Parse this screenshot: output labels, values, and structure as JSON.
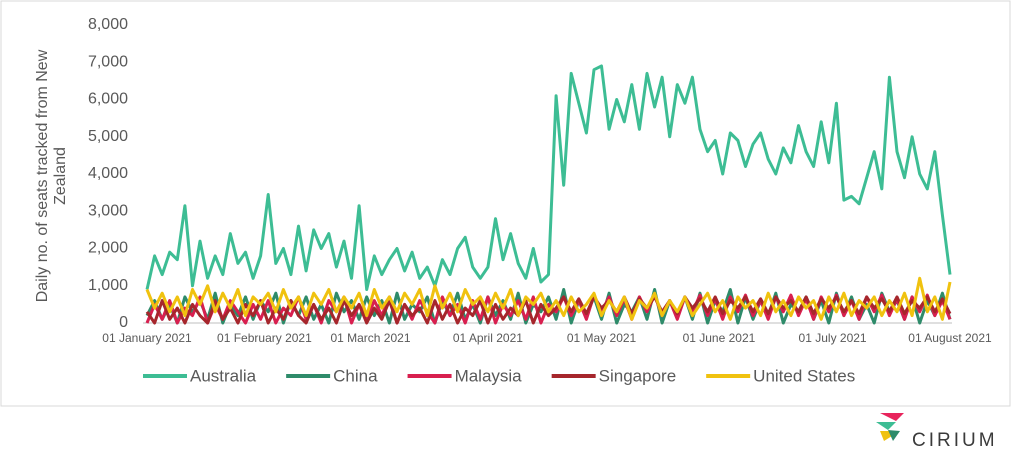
{
  "chart_data": {
    "type": "line",
    "y_label": "Daily no. of seats tracked from New Zealand",
    "x": [
      0,
      2,
      4,
      6,
      8,
      10,
      12,
      14,
      16,
      18,
      20,
      22,
      24,
      26,
      28,
      30,
      32,
      34,
      36,
      38,
      40,
      42,
      44,
      46,
      48,
      50,
      52,
      54,
      56,
      58,
      60,
      62,
      64,
      66,
      68,
      70,
      72,
      74,
      76,
      78,
      80,
      82,
      84,
      86,
      88,
      90,
      92,
      94,
      96,
      98,
      100,
      102,
      104,
      106,
      108,
      110,
      112,
      114,
      116,
      118,
      120,
      122,
      124,
      126,
      128,
      130,
      132,
      134,
      136,
      138,
      140,
      142,
      144,
      146,
      148,
      150,
      152,
      154,
      156,
      158,
      160,
      162,
      164,
      166,
      168,
      170,
      172,
      174,
      176,
      178,
      180,
      182,
      184,
      186,
      188,
      190,
      192,
      194,
      196,
      198,
      200,
      202,
      204,
      206,
      208,
      210,
      212
    ],
    "xlim": [
      0,
      212
    ],
    "xticks": [
      {
        "value": 0,
        "label": "01 January 2021"
      },
      {
        "value": 31,
        "label": "01 February 2021"
      },
      {
        "value": 59,
        "label": "01 March 2021"
      },
      {
        "value": 90,
        "label": "01 April 2021"
      },
      {
        "value": 120,
        "label": "01 May 2021"
      },
      {
        "value": 151,
        "label": "01 June 2021"
      },
      {
        "value": 181,
        "label": "01 July 2021"
      },
      {
        "value": 212,
        "label": "01 August 2021"
      }
    ],
    "ylim": [
      0,
      8000
    ],
    "yticks": [
      0,
      {
        "value": 1000,
        "label": "1,000"
      },
      {
        "value": 2000,
        "label": "2,000"
      },
      {
        "value": 3000,
        "label": "3,000"
      },
      {
        "value": 4000,
        "label": "4,000"
      },
      {
        "value": 5000,
        "label": "5,000"
      },
      {
        "value": 6000,
        "label": "6,000"
      },
      {
        "value": 7000,
        "label": "7,000"
      },
      {
        "value": 8000,
        "label": "8,000"
      }
    ],
    "series": [
      {
        "name": "Australia",
        "color": "#3dbd94",
        "values": [
          900,
          1800,
          1300,
          1900,
          1700,
          3150,
          1000,
          2200,
          1200,
          1800,
          1300,
          2400,
          1600,
          1900,
          1200,
          1800,
          3450,
          1600,
          2000,
          1300,
          2600,
          1400,
          2500,
          2000,
          2400,
          1500,
          2200,
          1200,
          3150,
          900,
          1800,
          1300,
          1700,
          2000,
          1400,
          1900,
          1200,
          1500,
          1000,
          1700,
          1300,
          2000,
          2300,
          1500,
          1200,
          1500,
          2800,
          1700,
          2400,
          1600,
          1200,
          2000,
          1100,
          1300,
          6100,
          3700,
          6700,
          5900,
          5100,
          6800,
          6900,
          5200,
          6000,
          5400,
          6400,
          5200,
          6700,
          5800,
          6600,
          5000,
          6400,
          5900,
          6600,
          5200,
          4600,
          4900,
          4000,
          5100,
          4900,
          4200,
          4800,
          5100,
          4400,
          4000,
          4700,
          4300,
          5300,
          4600,
          4200,
          5400,
          4300,
          5900,
          3300,
          3400,
          3200,
          3900,
          4600,
          3600,
          6600,
          4600,
          3900,
          5000,
          4000,
          3600,
          4600,
          2900,
          1300
        ]
      },
      {
        "name": "China",
        "color": "#2e8b6a",
        "values": [
          200,
          600,
          100,
          500,
          0,
          700,
          300,
          600,
          100,
          800,
          0,
          500,
          200,
          700,
          100,
          600,
          300,
          800,
          0,
          600,
          200,
          700,
          100,
          500,
          0,
          800,
          300,
          600,
          100,
          700,
          200,
          600,
          0,
          800,
          100,
          500,
          300,
          700,
          0,
          600,
          200,
          800,
          100,
          500,
          0,
          700,
          200,
          600,
          100,
          800,
          0,
          500,
          300,
          700,
          100,
          900,
          0,
          600,
          200,
          700,
          100,
          800,
          0,
          500,
          300,
          700,
          100,
          900,
          0,
          600,
          200,
          700,
          100,
          800,
          0,
          600,
          300,
          900,
          0,
          700,
          100,
          600,
          200,
          800,
          0,
          500,
          300,
          700,
          100,
          600,
          0,
          800,
          200,
          700,
          100,
          500,
          0,
          800,
          300,
          600,
          100,
          700,
          0,
          600,
          200,
          800,
          100
        ]
      },
      {
        "name": "Malaysia",
        "color": "#d81f4f",
        "values": [
          0,
          500,
          100,
          600,
          0,
          400,
          200,
          700,
          0,
          500,
          100,
          600,
          300,
          0,
          500,
          100,
          600,
          0,
          400,
          200,
          700,
          100,
          500,
          0,
          600,
          300,
          700,
          0,
          500,
          100,
          600,
          200,
          700,
          0,
          500,
          100,
          600,
          300,
          0,
          700,
          200,
          500,
          0,
          600,
          100,
          700,
          0,
          500,
          200,
          600,
          100,
          700,
          0,
          500,
          300,
          700,
          200,
          600,
          100,
          750,
          300,
          700,
          200,
          650,
          100,
          700,
          300,
          750,
          200,
          600,
          100,
          700,
          300,
          750,
          200,
          650,
          100,
          700,
          300,
          750,
          200,
          600,
          100,
          700,
          300,
          750,
          200,
          650,
          100,
          700,
          300,
          750,
          200,
          600,
          100,
          700,
          300,
          750,
          200,
          650,
          100,
          700,
          300,
          750,
          200,
          600,
          100
        ]
      },
      {
        "name": "Singapore",
        "color": "#a6262c",
        "values": [
          300,
          0,
          600,
          100,
          400,
          0,
          500,
          200,
          0,
          600,
          100,
          400,
          0,
          500,
          200,
          600,
          0,
          400,
          100,
          600,
          200,
          0,
          500,
          100,
          400,
          0,
          600,
          200,
          500,
          0,
          400,
          100,
          600,
          0,
          500,
          200,
          400,
          0,
          600,
          100,
          500,
          0,
          400,
          200,
          600,
          0,
          500,
          100,
          400,
          200,
          600,
          0,
          500,
          200,
          400,
          700,
          300,
          650,
          250,
          700,
          400,
          600,
          300,
          700,
          250,
          650,
          400,
          700,
          300,
          600,
          250,
          700,
          400,
          650,
          300,
          700,
          250,
          600,
          400,
          700,
          300,
          650,
          250,
          700,
          400,
          600,
          300,
          700,
          250,
          650,
          400,
          700,
          300,
          600,
          250,
          700,
          400,
          650,
          300,
          700,
          250,
          600,
          400,
          700,
          300,
          650,
          250
        ]
      },
      {
        "name": "United States",
        "color": "#f0c20f",
        "values": [
          900,
          400,
          800,
          300,
          700,
          200,
          900,
          500,
          1000,
          300,
          800,
          400,
          900,
          200,
          700,
          500,
          800,
          300,
          900,
          400,
          700,
          200,
          800,
          500,
          900,
          300,
          700,
          400,
          800,
          200,
          900,
          400,
          700,
          300,
          800,
          500,
          900,
          200,
          1000,
          400,
          800,
          300,
          900,
          500,
          700,
          300,
          800,
          400,
          900,
          200,
          700,
          500,
          800,
          300,
          600,
          200,
          700,
          300,
          500,
          800,
          200,
          600,
          300,
          700,
          100,
          600,
          400,
          800,
          200,
          600,
          300,
          700,
          200,
          500,
          800,
          300,
          600,
          100,
          700,
          400,
          600,
          200,
          800,
          300,
          600,
          200,
          700,
          400,
          600,
          100,
          700,
          300,
          800,
          200,
          600,
          400,
          700,
          200,
          600,
          300,
          800,
          200,
          1200,
          300,
          700,
          100,
          1100
        ]
      }
    ]
  },
  "logo": "CIRIUM"
}
